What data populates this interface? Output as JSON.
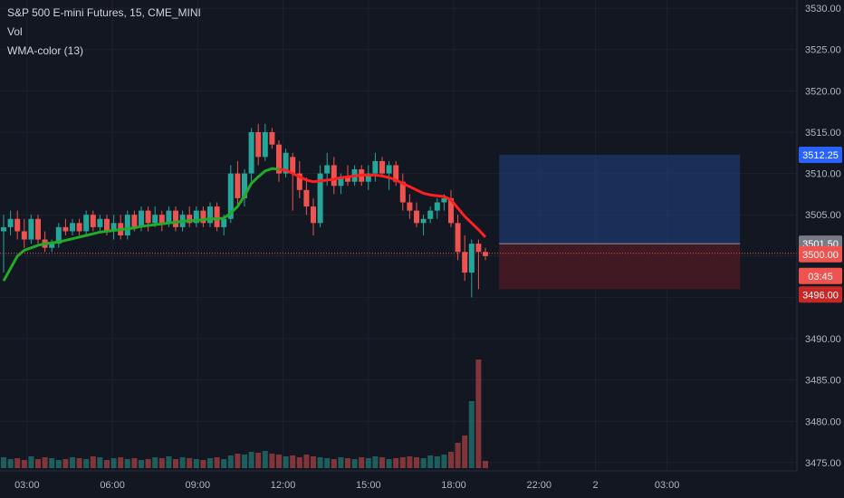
{
  "header": {
    "symbol_line": "S&P 500 E-mini Futures, 15, CME_MINI",
    "indicator_vol": "Vol",
    "indicator_wma": "WMA-color (13)"
  },
  "colors": {
    "background": "#131722",
    "up": "#26a69a",
    "down": "#ef5350",
    "wma_up": "#22ab26",
    "wma_down": "#ff1f1f",
    "target_zone": "#1e3a6e",
    "stop_zone": "#4a1a22"
  },
  "chart_data": {
    "type": "candlestick",
    "title": "S&P 500 E-mini Futures, 15, CME_MINI",
    "price_axis": {
      "ylim": [
        3474,
        3531
      ],
      "ticks": [
        3475.0,
        3480.0,
        3485.0,
        3490.0,
        3495.0,
        3500.0,
        3505.0,
        3510.0,
        3515.0,
        3520.0,
        3525.0,
        3530.0
      ],
      "tick_labels": [
        "3475.00",
        "3480.00",
        "3485.00",
        "3490.00",
        "3495.00",
        "3500.00",
        "3505.00",
        "3510.00",
        "3515.00",
        "3520.00",
        "3525.00",
        "3530.00"
      ]
    },
    "time_axis": {
      "labels": [
        "03:00",
        "06:00",
        "09:00",
        "12:00",
        "15:00",
        "18:00",
        "22:00",
        "2",
        "03:00"
      ],
      "positions": [
        0.85,
        3.95,
        7.05,
        10.15,
        13.25,
        16.35,
        19.45,
        21.5,
        24.1
      ],
      "units": "hours from 02:05"
    },
    "candles": [
      [
        3503.0,
        3505.0,
        3498.0,
        3503.5
      ],
      [
        3503.5,
        3505.5,
        3502.5,
        3504.5
      ],
      [
        3504.5,
        3505.5,
        3502.0,
        3503.0
      ],
      [
        3503.0,
        3504.5,
        3501.0,
        3502.0
      ],
      [
        3502.0,
        3505.0,
        3501.5,
        3504.5
      ],
      [
        3504.5,
        3505.0,
        3501.5,
        3502.0
      ],
      [
        3502.0,
        3503.0,
        3500.5,
        3501.0
      ],
      [
        3501.0,
        3502.0,
        3500.5,
        3501.5
      ],
      [
        3501.5,
        3504.0,
        3501.0,
        3503.5
      ],
      [
        3503.5,
        3504.5,
        3502.5,
        3503.0
      ],
      [
        3503.0,
        3504.5,
        3502.5,
        3504.0
      ],
      [
        3504.0,
        3504.5,
        3502.5,
        3503.0
      ],
      [
        3503.0,
        3505.5,
        3502.5,
        3505.0
      ],
      [
        3505.0,
        3505.5,
        3503.0,
        3503.5
      ],
      [
        3503.5,
        3505.0,
        3503.0,
        3504.5
      ],
      [
        3504.5,
        3505.0,
        3502.5,
        3503.0
      ],
      [
        3503.0,
        3505.0,
        3502.0,
        3504.0
      ],
      [
        3504.0,
        3505.0,
        3502.0,
        3502.5
      ],
      [
        3502.5,
        3505.5,
        3502.0,
        3505.0
      ],
      [
        3505.0,
        3505.5,
        3503.0,
        3503.5
      ],
      [
        3503.5,
        3506.0,
        3503.0,
        3505.5
      ],
      [
        3505.5,
        3506.0,
        3503.0,
        3504.0
      ],
      [
        3504.0,
        3506.0,
        3503.5,
        3505.0
      ],
      [
        3505.0,
        3505.5,
        3503.0,
        3504.0
      ],
      [
        3504.0,
        3506.0,
        3503.5,
        3505.5
      ],
      [
        3505.5,
        3506.0,
        3503.0,
        3503.5
      ],
      [
        3503.5,
        3505.5,
        3503.0,
        3505.0
      ],
      [
        3505.0,
        3506.0,
        3503.5,
        3504.0
      ],
      [
        3504.0,
        3506.0,
        3503.5,
        3505.5
      ],
      [
        3505.5,
        3506.0,
        3503.5,
        3504.0
      ],
      [
        3504.0,
        3506.5,
        3503.5,
        3506.0
      ],
      [
        3506.0,
        3506.5,
        3503.0,
        3503.5
      ],
      [
        3503.5,
        3505.0,
        3502.5,
        3504.5
      ],
      [
        3504.5,
        3511.0,
        3504.0,
        3510.0
      ],
      [
        3510.0,
        3511.5,
        3506.0,
        3507.0
      ],
      [
        3507.0,
        3510.5,
        3506.0,
        3510.0
      ],
      [
        3510.0,
        3515.5,
        3509.0,
        3515.0
      ],
      [
        3515.0,
        3516.0,
        3511.0,
        3512.0
      ],
      [
        3512.0,
        3516.0,
        3511.5,
        3515.0
      ],
      [
        3515.0,
        3515.5,
        3513.0,
        3513.5
      ],
      [
        3513.5,
        3514.0,
        3509.0,
        3510.0
      ],
      [
        3510.0,
        3513.0,
        3509.5,
        3512.5
      ],
      [
        3512.0,
        3512.5,
        3505.5,
        3510.0
      ],
      [
        3510.0,
        3511.5,
        3507.0,
        3508.0
      ],
      [
        3508.0,
        3509.5,
        3505.0,
        3506.0
      ],
      [
        3506.0,
        3507.0,
        3502.5,
        3504.0
      ],
      [
        3504.0,
        3511.0,
        3503.5,
        3510.0
      ],
      [
        3510.0,
        3512.5,
        3508.5,
        3511.0
      ],
      [
        3511.0,
        3512.0,
        3507.5,
        3508.5
      ],
      [
        3508.5,
        3510.0,
        3507.5,
        3509.5
      ],
      [
        3509.5,
        3511.0,
        3508.5,
        3509.0
      ],
      [
        3509.0,
        3511.0,
        3508.5,
        3510.5
      ],
      [
        3510.5,
        3511.0,
        3508.5,
        3509.0
      ],
      [
        3509.0,
        3511.0,
        3508.0,
        3510.0
      ],
      [
        3510.0,
        3512.5,
        3509.0,
        3511.5
      ],
      [
        3511.5,
        3512.0,
        3509.5,
        3510.0
      ],
      [
        3510.0,
        3511.5,
        3508.0,
        3511.0
      ],
      [
        3511.0,
        3511.5,
        3508.5,
        3509.0
      ],
      [
        3509.0,
        3510.0,
        3505.5,
        3506.5
      ],
      [
        3506.5,
        3507.5,
        3504.5,
        3505.5
      ],
      [
        3505.5,
        3506.5,
        3503.5,
        3504.0
      ],
      [
        3504.0,
        3505.0,
        3502.5,
        3504.5
      ],
      [
        3504.5,
        3506.0,
        3504.0,
        3505.5
      ],
      [
        3505.5,
        3507.0,
        3504.5,
        3506.5
      ],
      [
        3506.5,
        3507.5,
        3505.5,
        3507.0
      ],
      [
        3507.0,
        3508.0,
        3503.5,
        3504.0
      ],
      [
        3504.0,
        3505.0,
        3499.5,
        3500.5
      ],
      [
        3500.5,
        3502.5,
        3497.0,
        3498.0
      ],
      [
        3498.0,
        3502.0,
        3495.0,
        3501.5
      ],
      [
        3501.5,
        3502.0,
        3496.0,
        3500.5
      ],
      [
        3500.5,
        3501.0,
        3499.5,
        3500.0
      ]
    ],
    "volume": [
      12,
      10,
      11,
      9,
      13,
      10,
      12,
      11,
      9,
      10,
      12,
      11,
      10,
      13,
      12,
      9,
      11,
      12,
      10,
      11,
      9,
      10,
      12,
      11,
      13,
      10,
      12,
      11,
      10,
      9,
      11,
      12,
      10,
      14,
      16,
      15,
      18,
      17,
      19,
      16,
      15,
      13,
      14,
      12,
      15,
      13,
      12,
      11,
      10,
      12,
      11,
      10,
      12,
      11,
      13,
      12,
      10,
      11,
      12,
      13,
      12,
      11,
      14,
      13,
      15,
      18,
      28,
      36,
      74,
      120,
      8
    ],
    "wma": [
      3497.0,
      3498.5,
      3500.0,
      3500.7,
      3501.0,
      3501.3,
      3501.5,
      3501.6,
      3501.7,
      3501.9,
      3502.1,
      3502.3,
      3502.5,
      3502.7,
      3502.9,
      3503.0,
      3503.1,
      3503.2,
      3503.3,
      3503.4,
      3503.6,
      3503.7,
      3503.8,
      3503.9,
      3504.0,
      3504.1,
      3504.2,
      3504.3,
      3504.3,
      3504.4,
      3504.5,
      3504.5,
      3504.6,
      3505.2,
      3506.0,
      3507.3,
      3508.8,
      3509.6,
      3510.3,
      3510.6,
      3510.5,
      3510.4,
      3510.0,
      3509.6,
      3509.2,
      3509.0,
      3509.1,
      3509.2,
      3509.3,
      3509.5,
      3509.6,
      3509.7,
      3509.8,
      3509.8,
      3509.8,
      3509.7,
      3509.5,
      3509.2,
      3508.8,
      3508.4,
      3508.0,
      3507.6,
      3507.4,
      3507.3,
      3507.2,
      3506.8,
      3505.8,
      3504.8,
      3504.0,
      3503.2,
      3502.3
    ],
    "wma_color_split": 40,
    "overlays": {
      "entry_price": 3501.5,
      "target_price": 3512.25,
      "stop_price": 3496.0,
      "last_price": 3500.0,
      "zone_start_candle": 72,
      "zone_end_candle": 107
    },
    "price_tags": {
      "target": "3512.25",
      "entry": "3501.50",
      "last": "3500.00",
      "countdown": "03:45",
      "stop": "3496.00"
    }
  }
}
